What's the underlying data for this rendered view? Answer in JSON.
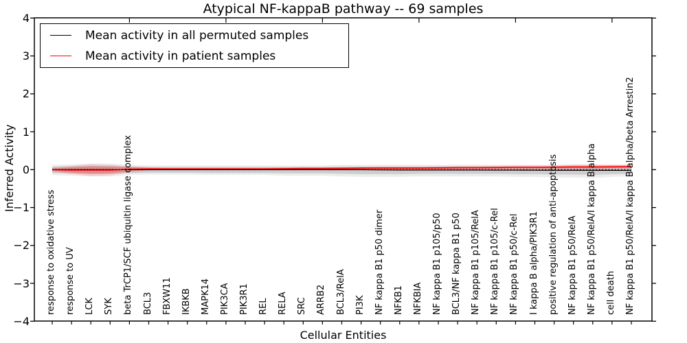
{
  "chart_data": {
    "type": "line",
    "title": "Atypical NF-kappaB pathway -- 69 samples",
    "xlabel": "Cellular Entities",
    "ylabel": "Inferred Activity",
    "ylim": [
      -4,
      4
    ],
    "grid": false,
    "legend_position": "upper left",
    "ytick_values": [
      4,
      3,
      2,
      1,
      0,
      -1,
      -2,
      -3,
      -4
    ],
    "ytick_labels": [
      "4",
      "3",
      "2",
      "1",
      "0",
      "−1",
      "−2",
      "−3",
      "−4"
    ],
    "categories": [
      "response to oxidative stress",
      "response to UV",
      "LCK",
      "SYK",
      "beta TrCP1/SCF ubiquitin ligase complex",
      "BCL3",
      "FBXW11",
      "IKBKB",
      "MAPK14",
      "PIK3CA",
      "PIK3R1",
      "REL",
      "RELA",
      "SRC",
      "ARRB2",
      "BCL3/RelA",
      "PI3K",
      "NF kappa B1 p50 dimer",
      "NFKB1",
      "NFKBIA",
      "NF kappa B1 p105/p50",
      "BCL3/NF kappa B1 p50",
      "NF kappa B1 p105/RelA",
      "NF kappa B1 p105/c-Rel",
      "NF kappa B1 p50/c-Rel",
      "I kappa B alpha/PIK3R1",
      "positive regulation of anti-apoptosis",
      "NF kappa B1 p50/RelA",
      "NF kappa B1 p50/RelA/I kappa B alpha",
      "cell death",
      "NF kappa B1 p50/RelA/I kappa B alpha/beta Arrestin2"
    ],
    "series": [
      {
        "name": "Mean activity in all permuted samples",
        "color": "#000000",
        "values": [
          0,
          0,
          0,
          0,
          0,
          0,
          0,
          0,
          0,
          0,
          0,
          0,
          0,
          0,
          0,
          0,
          0,
          -0.005,
          -0.01,
          -0.01,
          -0.01,
          -0.01,
          -0.01,
          -0.012,
          -0.012,
          -0.014,
          -0.016,
          -0.016,
          -0.018,
          -0.018,
          -0.02
        ]
      },
      {
        "name": "Mean activity in patient samples",
        "color": "#ff0000",
        "values": [
          0,
          -0.01,
          -0.01,
          -0.01,
          0.01,
          0.02,
          0.02,
          0.02,
          0.02,
          0.02,
          0.02,
          0.02,
          0.025,
          0.03,
          0.03,
          0.035,
          0.04,
          0.04,
          0.04,
          0.04,
          0.045,
          0.05,
          0.05,
          0.055,
          0.06,
          0.06,
          0.065,
          0.07,
          0.07,
          0.075,
          0.08
        ]
      }
    ],
    "zero_line": {
      "y": 0,
      "style": "dotted",
      "color": "#000000"
    },
    "bands": [
      {
        "name": "permuted-range-outer",
        "color": "rgba(0,0,0,0.07)",
        "hi": [
          0.13,
          0.14,
          0.16,
          0.16,
          0.13,
          0.11,
          0.11,
          0.11,
          0.11,
          0.11,
          0.11,
          0.11,
          0.11,
          0.11,
          0.11,
          0.13,
          0.13,
          0.13,
          0.13,
          0.13,
          0.13,
          0.13,
          0.13,
          0.13,
          0.13,
          0.13,
          0.13,
          0.14,
          0.14,
          0.13,
          0.13
        ],
        "lo": [
          -0.14,
          -0.16,
          -0.18,
          -0.18,
          -0.14,
          -0.13,
          -0.13,
          -0.13,
          -0.14,
          -0.14,
          -0.14,
          -0.14,
          -0.16,
          -0.16,
          -0.16,
          -0.18,
          -0.19,
          -0.19,
          -0.19,
          -0.18,
          -0.18,
          -0.18,
          -0.18,
          -0.18,
          -0.19,
          -0.19,
          -0.21,
          -0.21,
          -0.22,
          -0.19,
          -0.18
        ]
      },
      {
        "name": "permuted-range-inner",
        "color": "rgba(0,0,0,0.13)",
        "hi": [
          0.08,
          0.09,
          0.1,
          0.1,
          0.08,
          0.07,
          0.07,
          0.07,
          0.07,
          0.07,
          0.07,
          0.07,
          0.07,
          0.07,
          0.07,
          0.08,
          0.08,
          0.08,
          0.08,
          0.08,
          0.08,
          0.08,
          0.08,
          0.08,
          0.08,
          0.08,
          0.08,
          0.09,
          0.09,
          0.08,
          0.08
        ],
        "lo": [
          -0.09,
          -0.1,
          -0.11,
          -0.11,
          -0.09,
          -0.08,
          -0.08,
          -0.08,
          -0.09,
          -0.09,
          -0.09,
          -0.09,
          -0.1,
          -0.1,
          -0.1,
          -0.11,
          -0.12,
          -0.12,
          -0.12,
          -0.11,
          -0.11,
          -0.11,
          -0.11,
          -0.11,
          -0.12,
          -0.12,
          -0.13,
          -0.13,
          -0.14,
          -0.12,
          -0.11
        ]
      },
      {
        "name": "patient-range-outer",
        "color": "rgba(255,0,0,0.12)",
        "hi": [
          0.05,
          0.1,
          0.15,
          0.13,
          0.09,
          0.06,
          0.05,
          0.05,
          0.05,
          0.05,
          0.05,
          0.05,
          0.057,
          0.06,
          0.06,
          0.067,
          0.07,
          0.08,
          0.08,
          0.08,
          0.085,
          0.1,
          0.1,
          0.1,
          0.11,
          0.11,
          0.11,
          0.13,
          0.13,
          0.13,
          0.13
        ],
        "lo": [
          -0.05,
          -0.12,
          -0.17,
          -0.15,
          -0.07,
          -0.02,
          -0.01,
          -0.01,
          -0.01,
          -0.01,
          -0.01,
          -0.01,
          -0.007,
          0,
          0,
          0.003,
          0.01,
          0,
          0,
          0,
          0.005,
          0,
          0,
          0.007,
          0.01,
          0.01,
          0.017,
          0.014,
          0.014,
          0.019,
          0.03
        ]
      },
      {
        "name": "patient-range-inner",
        "color": "rgba(255,0,0,0.22)",
        "hi": [
          0.03,
          0.06,
          0.09,
          0.08,
          0.06,
          0.045,
          0.04,
          0.04,
          0.04,
          0.04,
          0.04,
          0.04,
          0.045,
          0.05,
          0.05,
          0.055,
          0.06,
          0.065,
          0.065,
          0.065,
          0.07,
          0.08,
          0.08,
          0.085,
          0.09,
          0.09,
          0.095,
          0.105,
          0.105,
          0.11,
          0.11
        ],
        "lo": [
          -0.03,
          -0.08,
          -0.11,
          -0.1,
          -0.04,
          -0.005,
          0,
          0,
          0,
          0,
          0,
          0,
          0.005,
          0.01,
          0.01,
          0.015,
          0.02,
          0.015,
          0.015,
          0.015,
          0.02,
          0.02,
          0.02,
          0.025,
          0.03,
          0.03,
          0.035,
          0.035,
          0.035,
          0.04,
          0.05
        ]
      }
    ]
  },
  "legend": {
    "items": [
      {
        "label": "Mean activity in all permuted samples",
        "color": "#000000"
      },
      {
        "label": "Mean activity in patient samples",
        "color": "#ff0000"
      }
    ]
  }
}
